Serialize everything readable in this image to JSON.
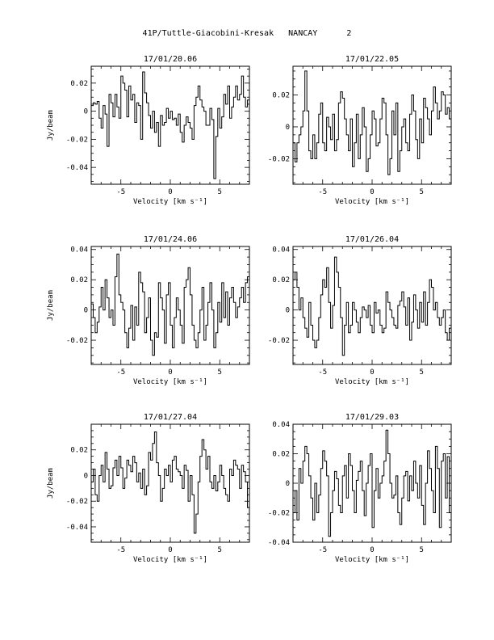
{
  "page_title": "41P/Tuttle-Giacobini-Kresak   NANCAY      2",
  "chart_data": [
    {
      "type": "line",
      "title": "17/01/20.06",
      "xlabel": "Velocity [km s⁻¹]",
      "ylabel": "Jy/beam",
      "xlim": [
        -8.0,
        8.0
      ],
      "ylim": [
        -0.052,
        0.032
      ],
      "xticks": [
        -5,
        0,
        5
      ],
      "xtick_labels": [
        "-5",
        "0",
        "5"
      ],
      "yticks": [
        -0.04,
        -0.02,
        0,
        0.02
      ],
      "ytick_labels": [
        "-0.04",
        "-0.02",
        "0",
        "0.02"
      ],
      "x": [
        -7.9,
        -7.7,
        -7.5,
        -7.3,
        -7.1,
        -6.9,
        -6.7,
        -6.5,
        -6.3,
        -6.1,
        -5.9,
        -5.7,
        -5.5,
        -5.3,
        -5.1,
        -4.9,
        -4.7,
        -4.5,
        -4.3,
        -4.1,
        -3.9,
        -3.7,
        -3.5,
        -3.3,
        -3.1,
        -2.9,
        -2.7,
        -2.5,
        -2.3,
        -2.1,
        -1.9,
        -1.7,
        -1.5,
        -1.3,
        -1.1,
        -0.9,
        -0.7,
        -0.5,
        -0.3,
        -0.1,
        0.1,
        0.3,
        0.5,
        0.7,
        0.9,
        1.1,
        1.3,
        1.5,
        1.7,
        1.9,
        2.1,
        2.3,
        2.5,
        2.7,
        2.9,
        3.1,
        3.3,
        3.5,
        3.7,
        3.9,
        4.1,
        4.3,
        4.5,
        4.7,
        4.9,
        5.1,
        5.3,
        5.5,
        5.7,
        5.9,
        6.1,
        6.3,
        6.5,
        6.7,
        6.9,
        7.1,
        7.3,
        7.5,
        7.7,
        7.9
      ],
      "y": [
        0.004,
        0.006,
        0.005,
        0.007,
        -0.005,
        -0.012,
        0.004,
        -0.002,
        -0.025,
        0.012,
        0.006,
        -0.004,
        0.012,
        0.003,
        -0.005,
        0.025,
        0.02,
        0.015,
        -0.004,
        0.018,
        0.008,
        0.012,
        -0.008,
        0.006,
        0.004,
        -0.02,
        0.028,
        0.013,
        0.006,
        -0.003,
        -0.012,
        0.0,
        -0.015,
        -0.008,
        -0.025,
        -0.003,
        -0.01,
        -0.008,
        0.002,
        -0.005,
        0.0,
        -0.006,
        -0.005,
        -0.01,
        -0.002,
        -0.015,
        -0.022,
        -0.01,
        -0.004,
        -0.008,
        -0.012,
        -0.02,
        0.004,
        0.01,
        0.018,
        0.008,
        0.003,
        0.0,
        -0.01,
        -0.01,
        0.002,
        -0.006,
        -0.048,
        -0.018,
        0.002,
        -0.012,
        -0.004,
        0.012,
        0.005,
        0.018,
        -0.005,
        0.003,
        0.01,
        0.018,
        0.008,
        0.012,
        0.025,
        0.01,
        0.003,
        0.008
      ]
    },
    {
      "type": "line",
      "title": "17/01/22.05",
      "xlabel": "Velocity [km s⁻¹]",
      "ylabel": "",
      "xlim": [
        -8.0,
        8.0
      ],
      "ylim": [
        -0.036,
        0.038
      ],
      "xticks": [
        -5,
        0,
        5
      ],
      "xtick_labels": [
        "-5",
        "0",
        "5"
      ],
      "yticks": [
        -0.02,
        0,
        0.02
      ],
      "ytick_labels": [
        "-0.02",
        "0",
        "0.02"
      ],
      "x": [
        -7.9,
        -7.7,
        -7.5,
        -7.3,
        -7.1,
        -6.9,
        -6.7,
        -6.5,
        -6.3,
        -6.1,
        -5.9,
        -5.7,
        -5.5,
        -5.3,
        -5.1,
        -4.9,
        -4.7,
        -4.5,
        -4.3,
        -4.1,
        -3.9,
        -3.7,
        -3.5,
        -3.3,
        -3.1,
        -2.9,
        -2.7,
        -2.5,
        -2.3,
        -2.1,
        -1.9,
        -1.7,
        -1.5,
        -1.3,
        -1.1,
        -0.9,
        -0.7,
        -0.5,
        -0.3,
        -0.1,
        0.1,
        0.3,
        0.5,
        0.7,
        0.9,
        1.1,
        1.3,
        1.5,
        1.7,
        1.9,
        2.1,
        2.3,
        2.5,
        2.7,
        2.9,
        3.1,
        3.3,
        3.5,
        3.7,
        3.9,
        4.1,
        4.3,
        4.5,
        4.7,
        4.9,
        5.1,
        5.3,
        5.5,
        5.7,
        5.9,
        6.1,
        6.3,
        6.5,
        6.7,
        6.9,
        7.1,
        7.3,
        7.5,
        7.7,
        7.9
      ],
      "y": [
        -0.01,
        -0.022,
        -0.01,
        -0.005,
        0.0,
        0.01,
        0.035,
        0.01,
        -0.015,
        -0.02,
        -0.005,
        -0.02,
        -0.01,
        0.008,
        0.015,
        -0.01,
        -0.015,
        0.006,
        0.0,
        -0.008,
        0.008,
        -0.015,
        -0.008,
        0.015,
        0.022,
        0.018,
        0.005,
        -0.005,
        -0.015,
        0.005,
        -0.025,
        -0.01,
        0.008,
        -0.02,
        -0.005,
        0.012,
        0.0,
        -0.028,
        -0.02,
        -0.005,
        0.01,
        0.005,
        -0.012,
        -0.01,
        0.005,
        0.018,
        0.015,
        -0.005,
        -0.03,
        -0.02,
        0.01,
        -0.005,
        0.015,
        -0.028,
        -0.015,
        0.0,
        0.005,
        -0.01,
        -0.015,
        0.008,
        0.02,
        0.01,
        -0.008,
        -0.02,
        0.005,
        -0.01,
        0.018,
        0.012,
        0.005,
        -0.005,
        0.01,
        0.025,
        0.015,
        0.005,
        0.01,
        0.022,
        0.02,
        0.008,
        0.012,
        0.005
      ]
    },
    {
      "type": "line",
      "title": "17/01/24.06",
      "xlabel": "Velocity [km s⁻¹]",
      "ylabel": "Jy/beam",
      "xlim": [
        -8.0,
        8.0
      ],
      "ylim": [
        -0.036,
        0.042
      ],
      "xticks": [
        -5,
        0,
        5
      ],
      "xtick_labels": [
        "-5",
        "0",
        "5"
      ],
      "yticks": [
        -0.02,
        0,
        0.02,
        0.04
      ],
      "ytick_labels": [
        "-0.02",
        "0",
        "0.02",
        "0.04"
      ],
      "x": [
        -7.9,
        -7.7,
        -7.5,
        -7.3,
        -7.1,
        -6.9,
        -6.7,
        -6.5,
        -6.3,
        -6.1,
        -5.9,
        -5.7,
        -5.5,
        -5.3,
        -5.1,
        -4.9,
        -4.7,
        -4.5,
        -4.3,
        -4.1,
        -3.9,
        -3.7,
        -3.5,
        -3.3,
        -3.1,
        -2.9,
        -2.7,
        -2.5,
        -2.3,
        -2.1,
        -1.9,
        -1.7,
        -1.5,
        -1.3,
        -1.1,
        -0.9,
        -0.7,
        -0.5,
        -0.3,
        -0.1,
        0.1,
        0.3,
        0.5,
        0.7,
        0.9,
        1.1,
        1.3,
        1.5,
        1.7,
        1.9,
        2.1,
        2.3,
        2.5,
        2.7,
        2.9,
        3.1,
        3.3,
        3.5,
        3.7,
        3.9,
        4.1,
        4.3,
        4.5,
        4.7,
        4.9,
        5.1,
        5.3,
        5.5,
        5.7,
        5.9,
        6.1,
        6.3,
        6.5,
        6.7,
        6.9,
        7.1,
        7.3,
        7.5,
        7.7,
        7.9
      ],
      "y": [
        0.004,
        -0.005,
        -0.015,
        -0.008,
        0.002,
        0.015,
        0.0,
        0.02,
        0.008,
        -0.005,
        0.0,
        -0.01,
        0.022,
        0.037,
        0.01,
        0.005,
        0.0,
        -0.015,
        -0.025,
        -0.012,
        0.003,
        -0.02,
        0.002,
        -0.01,
        0.025,
        0.018,
        0.012,
        -0.015,
        -0.005,
        0.008,
        -0.02,
        -0.03,
        -0.015,
        -0.018,
        0.018,
        0.008,
        0.0,
        -0.022,
        0.01,
        0.018,
        -0.01,
        -0.025,
        -0.005,
        0.008,
        0.0,
        -0.01,
        -0.022,
        0.015,
        0.02,
        0.028,
        0.01,
        -0.01,
        -0.02,
        -0.025,
        -0.015,
        0.0,
        0.015,
        -0.02,
        -0.01,
        0.005,
        0.018,
        0.0,
        -0.025,
        -0.015,
        0.005,
        -0.008,
        0.018,
        -0.005,
        0.012,
        -0.01,
        0.008,
        0.015,
        0.005,
        -0.005,
        0.002,
        0.008,
        0.015,
        0.005,
        0.018,
        0.022
      ]
    },
    {
      "type": "line",
      "title": "17/01/26.04",
      "xlabel": "Velocity [km s⁻¹]",
      "ylabel": "",
      "xlim": [
        -8.0,
        8.0
      ],
      "ylim": [
        -0.036,
        0.042
      ],
      "xticks": [
        -5,
        0,
        5
      ],
      "xtick_labels": [
        "-5",
        "0",
        "5"
      ],
      "yticks": [
        -0.02,
        0,
        0.02,
        0.04
      ],
      "ytick_labels": [
        "-0.02",
        "0",
        "0.02",
        "0.04"
      ],
      "x": [
        -7.9,
        -7.7,
        -7.5,
        -7.3,
        -7.1,
        -6.9,
        -6.7,
        -6.5,
        -6.3,
        -6.1,
        -5.9,
        -5.7,
        -5.5,
        -5.3,
        -5.1,
        -4.9,
        -4.7,
        -4.5,
        -4.3,
        -4.1,
        -3.9,
        -3.7,
        -3.5,
        -3.3,
        -3.1,
        -2.9,
        -2.7,
        -2.5,
        -2.3,
        -2.1,
        -1.9,
        -1.7,
        -1.5,
        -1.3,
        -1.1,
        -0.9,
        -0.7,
        -0.5,
        -0.3,
        -0.1,
        0.1,
        0.3,
        0.5,
        0.7,
        0.9,
        1.1,
        1.3,
        1.5,
        1.7,
        1.9,
        2.1,
        2.3,
        2.5,
        2.7,
        2.9,
        3.1,
        3.3,
        3.5,
        3.7,
        3.9,
        4.1,
        4.3,
        4.5,
        4.7,
        4.9,
        5.1,
        5.3,
        5.5,
        5.7,
        5.9,
        6.1,
        6.3,
        6.5,
        6.7,
        6.9,
        7.1,
        7.3,
        7.5,
        7.7,
        7.9
      ],
      "y": [
        0.02,
        0.025,
        0.015,
        0.0,
        0.008,
        -0.005,
        -0.012,
        -0.018,
        0.005,
        -0.01,
        -0.02,
        -0.025,
        -0.02,
        -0.005,
        0.01,
        0.02,
        0.015,
        0.028,
        0.005,
        -0.012,
        0.003,
        0.035,
        0.025,
        0.015,
        -0.005,
        -0.03,
        -0.01,
        0.005,
        -0.015,
        -0.01,
        0.005,
        0.0,
        -0.008,
        -0.015,
        -0.005,
        0.002,
        0.0,
        -0.005,
        0.003,
        -0.01,
        -0.015,
        0.005,
        -0.002,
        0.0,
        -0.01,
        -0.015,
        -0.012,
        0.012,
        0.005,
        0.0,
        -0.005,
        -0.01,
        -0.012,
        0.003,
        0.006,
        0.012,
        0.002,
        -0.01,
        0.008,
        -0.02,
        -0.008,
        0.01,
        0.0,
        -0.012,
        0.005,
        -0.008,
        0.012,
        -0.01,
        0.005,
        0.02,
        0.015,
        0.0,
        0.005,
        -0.005,
        -0.01,
        -0.005,
        0.0,
        -0.015,
        -0.02,
        -0.012
      ]
    },
    {
      "type": "line",
      "title": "17/01/27.04",
      "xlabel": "Velocity [km s⁻¹]",
      "ylabel": "Jy/beam",
      "xlim": [
        -8.0,
        8.0
      ],
      "ylim": [
        -0.052,
        0.04
      ],
      "xticks": [
        -5,
        0,
        5
      ],
      "xtick_labels": [
        "-5",
        "0",
        "5"
      ],
      "yticks": [
        -0.04,
        -0.02,
        0,
        0.02
      ],
      "ytick_labels": [
        "-0.04",
        "-0.02",
        "0",
        "0.02"
      ],
      "x": [
        -7.9,
        -7.7,
        -7.5,
        -7.3,
        -7.1,
        -6.9,
        -6.7,
        -6.5,
        -6.3,
        -6.1,
        -5.9,
        -5.7,
        -5.5,
        -5.3,
        -5.1,
        -4.9,
        -4.7,
        -4.5,
        -4.3,
        -4.1,
        -3.9,
        -3.7,
        -3.5,
        -3.3,
        -3.1,
        -2.9,
        -2.7,
        -2.5,
        -2.3,
        -2.1,
        -1.9,
        -1.7,
        -1.5,
        -1.3,
        -1.1,
        -0.9,
        -0.7,
        -0.5,
        -0.3,
        -0.1,
        0.1,
        0.3,
        0.5,
        0.7,
        0.9,
        1.1,
        1.3,
        1.5,
        1.7,
        1.9,
        2.1,
        2.3,
        2.5,
        2.7,
        2.9,
        3.1,
        3.3,
        3.5,
        3.7,
        3.9,
        4.1,
        4.3,
        4.5,
        4.7,
        4.9,
        5.1,
        5.3,
        5.5,
        5.7,
        5.9,
        6.1,
        6.3,
        6.5,
        6.7,
        6.9,
        7.1,
        7.3,
        7.5,
        7.7,
        7.9
      ],
      "y": [
        -0.005,
        0.005,
        -0.015,
        -0.02,
        0.0,
        0.008,
        -0.005,
        0.018,
        0.005,
        -0.01,
        -0.008,
        0.006,
        0.012,
        0.0,
        0.015,
        0.006,
        -0.01,
        -0.002,
        0.012,
        0.008,
        0.003,
        0.015,
        0.01,
        -0.005,
        0.002,
        -0.01,
        0.005,
        -0.015,
        -0.008,
        0.018,
        0.012,
        0.025,
        0.034,
        0.01,
        0.0,
        -0.02,
        -0.01,
        0.005,
        0.0,
        0.008,
        -0.005,
        0.012,
        0.015,
        0.005,
        0.003,
        0.0,
        -0.01,
        0.008,
        0.004,
        -0.02,
        0.0,
        -0.015,
        -0.045,
        -0.03,
        -0.005,
        0.015,
        0.028,
        0.02,
        0.005,
        0.015,
        -0.005,
        -0.01,
        0.0,
        -0.012,
        -0.005,
        0.008,
        0.0,
        -0.01,
        -0.015,
        -0.02,
        0.005,
        0.0,
        0.012,
        0.008,
        0.005,
        -0.01,
        0.008,
        0.003,
        -0.005,
        -0.025
      ]
    },
    {
      "type": "line",
      "title": "17/01/29.03",
      "xlabel": "Velocity [km s⁻¹]",
      "ylabel": "",
      "xlim": [
        -8.0,
        8.0
      ],
      "ylim": [
        -0.04,
        0.04
      ],
      "xticks": [
        -5,
        0,
        5
      ],
      "xtick_labels": [
        "-5",
        "0",
        "5"
      ],
      "yticks": [
        -0.04,
        -0.02,
        0,
        0.02,
        0.04
      ],
      "ytick_labels": [
        "-0.04",
        "-0.02",
        "0",
        "0.02",
        "0.04"
      ],
      "x": [
        -7.9,
        -7.7,
        -7.5,
        -7.3,
        -7.1,
        -6.9,
        -6.7,
        -6.5,
        -6.3,
        -6.1,
        -5.9,
        -5.7,
        -5.5,
        -5.3,
        -5.1,
        -4.9,
        -4.7,
        -4.5,
        -4.3,
        -4.1,
        -3.9,
        -3.7,
        -3.5,
        -3.3,
        -3.1,
        -2.9,
        -2.7,
        -2.5,
        -2.3,
        -2.1,
        -1.9,
        -1.7,
        -1.5,
        -1.3,
        -1.1,
        -0.9,
        -0.7,
        -0.5,
        -0.3,
        -0.1,
        0.1,
        0.3,
        0.5,
        0.7,
        0.9,
        1.1,
        1.3,
        1.5,
        1.7,
        1.9,
        2.1,
        2.3,
        2.5,
        2.7,
        2.9,
        3.1,
        3.3,
        3.5,
        3.7,
        3.9,
        4.1,
        4.3,
        4.5,
        4.7,
        4.9,
        5.1,
        5.3,
        5.5,
        5.7,
        5.9,
        6.1,
        6.3,
        6.5,
        6.7,
        6.9,
        7.1,
        7.3,
        7.5,
        7.7,
        7.9
      ],
      "y": [
        -0.02,
        -0.005,
        -0.025,
        0.01,
        0.0,
        0.015,
        0.025,
        0.02,
        0.005,
        -0.01,
        -0.025,
        0.0,
        -0.02,
        -0.008,
        0.01,
        0.022,
        0.015,
        0.005,
        -0.036,
        -0.02,
        -0.005,
        0.008,
        0.003,
        -0.015,
        -0.02,
        0.005,
        0.012,
        -0.01,
        0.02,
        0.012,
        -0.005,
        -0.02,
        0.002,
        0.008,
        0.015,
        -0.005,
        -0.022,
        0.0,
        0.012,
        0.02,
        -0.03,
        -0.005,
        0.01,
        -0.01,
        0.0,
        0.005,
        0.015,
        0.036,
        0.02,
        0.0,
        -0.01,
        -0.008,
        0.005,
        -0.02,
        -0.028,
        -0.01,
        0.005,
        0.008,
        -0.012,
        0.005,
        -0.005,
        0.015,
        0.0,
        -0.01,
        0.012,
        -0.015,
        -0.028,
        0.0,
        0.022,
        0.01,
        -0.005,
        -0.02,
        0.025,
        0.01,
        -0.03,
        0.015,
        0.02,
        -0.01,
        0.018,
        -0.02
      ]
    }
  ]
}
